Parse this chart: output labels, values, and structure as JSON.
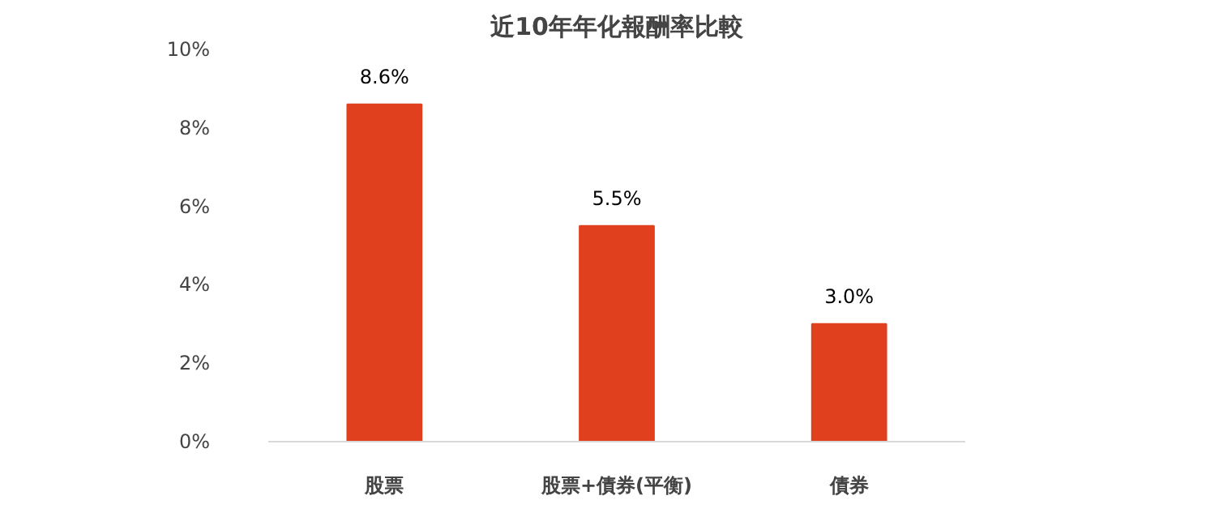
{
  "chart_data": {
    "type": "bar",
    "title": "近10年年化報酬率比較",
    "categories": [
      "股票",
      "股票+債券(平衡)",
      "債券"
    ],
    "values": [
      8.6,
      5.5,
      3.0
    ],
    "color": "#e0401e",
    "value_labels": [
      "8.6%",
      "5.5%",
      "3.0%"
    ],
    "ylim": [
      0,
      10
    ],
    "yticks": [
      {
        "value": 0,
        "label": "0%"
      },
      {
        "value": 2,
        "label": "2%"
      },
      {
        "value": 4,
        "label": "4%"
      },
      {
        "value": 6,
        "label": "6%"
      },
      {
        "value": 8,
        "label": "8%"
      },
      {
        "value": 10,
        "label": "10%"
      }
    ],
    "grid": false
  }
}
